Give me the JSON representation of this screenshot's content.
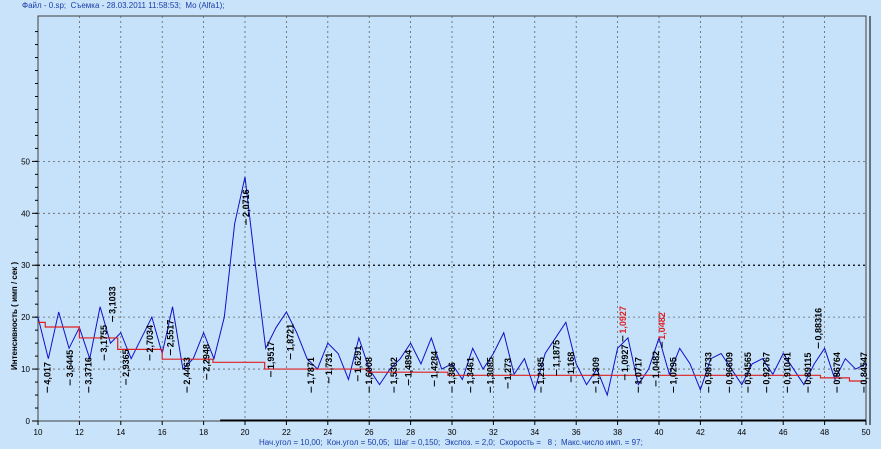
{
  "header": {
    "title": "Файл - 0.sp;  Съемка - 28.03.2011 11:58:53;  Mo (Alfa1);"
  },
  "footer": {
    "params": "Нач.угол = 10,00;  Кон.угол = 50,05;  Шаг = 0,150;  Экспоз. = 2,0;  Скорость =   8 ;  Макс.число имп. = 97;"
  },
  "chart_data": {
    "type": "line",
    "title": "",
    "xlabel": "",
    "ylabel": "Интенсивность ( имп / сек )",
    "xlim": [
      10,
      50
    ],
    "ylim": [
      0,
      78
    ],
    "xticks": [
      10,
      12,
      14,
      16,
      18,
      20,
      22,
      24,
      26,
      28,
      30,
      32,
      34,
      36,
      38,
      40,
      42,
      44,
      46,
      48,
      50
    ],
    "yticks": [
      0,
      10,
      20,
      30,
      40,
      50
    ],
    "grid": true,
    "colors": {
      "background": "#c6e2fb",
      "pattern": "#1010c8",
      "background_line": "#e02020",
      "grid": "#606060",
      "label": "#000000",
      "label_highlight": "#e02020"
    },
    "series": [
      {
        "role": "pattern",
        "x_start": 10,
        "x_step": 0.5,
        "values": [
          20,
          12,
          21,
          14,
          18,
          12,
          22,
          15,
          17,
          12,
          16,
          20,
          13,
          22,
          10,
          12,
          17,
          12,
          20,
          38,
          47,
          30,
          14,
          18,
          21,
          17,
          12,
          10,
          15,
          13,
          8,
          16,
          10,
          7,
          10,
          12,
          15,
          11,
          16,
          10,
          11,
          8,
          14,
          10,
          13,
          17,
          9,
          12,
          6,
          13,
          16,
          19,
          11,
          7,
          10,
          5,
          14,
          16,
          7,
          10,
          16,
          9,
          14,
          11,
          6,
          12,
          13,
          10,
          7,
          11,
          12,
          9,
          13,
          10,
          7,
          11,
          14,
          8,
          12,
          10,
          11
        ]
      },
      {
        "role": "background",
        "points": [
          [
            10,
            19
          ],
          [
            10.35,
            19
          ],
          [
            10.35,
            18.1
          ],
          [
            12,
            18.1
          ],
          [
            12,
            16
          ],
          [
            13.85,
            16
          ],
          [
            13.85,
            13.8
          ],
          [
            16,
            13.8
          ],
          [
            16,
            11.9
          ],
          [
            18.45,
            11.9
          ],
          [
            18.45,
            11.3
          ],
          [
            20.95,
            11.3
          ],
          [
            20.95,
            10
          ],
          [
            25.95,
            10
          ],
          [
            25.95,
            9.4
          ],
          [
            29.8,
            9.4
          ],
          [
            29.8,
            8.8
          ],
          [
            47.8,
            8.8
          ],
          [
            47.8,
            8.3
          ],
          [
            49.2,
            8.3
          ],
          [
            49.2,
            7.7
          ],
          [
            50,
            7.7
          ]
        ]
      }
    ],
    "peak_labels": [
      {
        "x": 10.45,
        "text": "4,017"
      },
      {
        "x": 11.55,
        "text": "3,6445"
      },
      {
        "x": 12.45,
        "text": "3,3716"
      },
      {
        "x": 13.2,
        "text": "3,1755"
      },
      {
        "x": 13.6,
        "text": "3,1033"
      },
      {
        "x": 14.25,
        "text": "2,9365"
      },
      {
        "x": 15.4,
        "text": "2,7034"
      },
      {
        "x": 16.4,
        "text": "2,5517"
      },
      {
        "x": 17.2,
        "text": "2,4463"
      },
      {
        "x": 18.15,
        "text": "2,2948"
      },
      {
        "x": 20.05,
        "text": "2,0716"
      },
      {
        "x": 21.25,
        "text": "1,9517"
      },
      {
        "x": 22.2,
        "text": "1,8721"
      },
      {
        "x": 23.2,
        "text": "1,7871"
      },
      {
        "x": 24.05,
        "text": "1,731"
      },
      {
        "x": 25.45,
        "text": "1,6291"
      },
      {
        "x": 26.0,
        "text": "1,6008"
      },
      {
        "x": 27.2,
        "text": "1,5302"
      },
      {
        "x": 27.9,
        "text": "1,4894"
      },
      {
        "x": 29.15,
        "text": "1,4284"
      },
      {
        "x": 30.0,
        "text": "1,386"
      },
      {
        "x": 30.9,
        "text": "1,3461"
      },
      {
        "x": 31.85,
        "text": "1,3085"
      },
      {
        "x": 32.7,
        "text": "1,273"
      },
      {
        "x": 34.3,
        "text": "1,2185"
      },
      {
        "x": 35.05,
        "text": "1,1875"
      },
      {
        "x": 35.75,
        "text": "1,168"
      },
      {
        "x": 36.95,
        "text": "1,1309"
      },
      {
        "x": 38.35,
        "text": "1,0927"
      },
      {
        "x": 38.25,
        "text": "1,0927",
        "highlight": true
      },
      {
        "x": 39.0,
        "text": "1,0717"
      },
      {
        "x": 39.85,
        "text": "1,0482"
      },
      {
        "x": 40.15,
        "text": "1,0482",
        "highlight": true
      },
      {
        "x": 40.7,
        "text": "1,0295"
      },
      {
        "x": 42.4,
        "text": "0,98733"
      },
      {
        "x": 43.4,
        "text": "0,96609"
      },
      {
        "x": 44.3,
        "text": "0,94565"
      },
      {
        "x": 45.2,
        "text": "0,92767"
      },
      {
        "x": 46.2,
        "text": "0,91041"
      },
      {
        "x": 47.2,
        "text": "0,89115"
      },
      {
        "x": 47.7,
        "text": "0,88316"
      },
      {
        "x": 48.6,
        "text": "0,86764"
      },
      {
        "x": 49.9,
        "text": "0,84547"
      }
    ]
  }
}
